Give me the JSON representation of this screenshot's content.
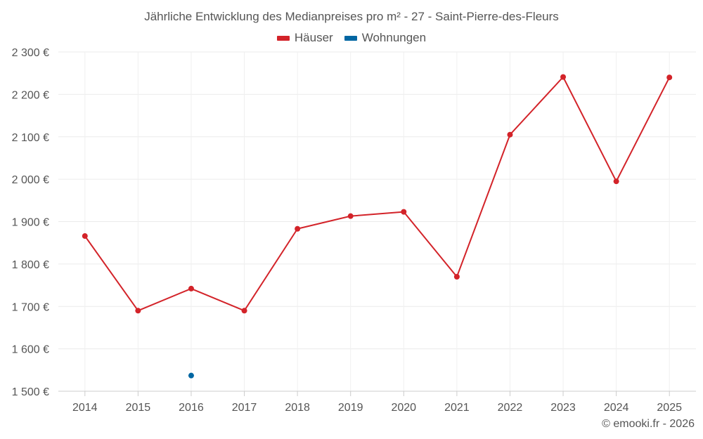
{
  "chart_data": {
    "type": "line",
    "title": "Jährliche Entwicklung des Medianpreises pro m² - 27 - Saint-Pierre-des-Fleurs",
    "xlabel": "",
    "ylabel": "",
    "categories": [
      "2014",
      "2015",
      "2016",
      "2017",
      "2018",
      "2019",
      "2020",
      "2021",
      "2022",
      "2023",
      "2024",
      "2025"
    ],
    "ylim": [
      1500,
      2300
    ],
    "yticks": [
      1500,
      1600,
      1700,
      1800,
      1900,
      2000,
      2100,
      2200,
      2300
    ],
    "ytick_labels": [
      "1 500 €",
      "1 600 €",
      "1 700 €",
      "1 800 €",
      "1 900 €",
      "2 000 €",
      "2 100 €",
      "2 200 €",
      "2 300 €"
    ],
    "grid": true,
    "legend_position": "top-center",
    "series": [
      {
        "name": "Häuser",
        "color": "#d32329",
        "values": [
          1866,
          1690,
          1742,
          1690,
          1883,
          1913,
          1923,
          1770,
          2105,
          2241,
          1995,
          2240
        ]
      },
      {
        "name": "Wohnungen",
        "color": "#0066a2",
        "values": [
          null,
          null,
          1537,
          null,
          null,
          null,
          null,
          null,
          null,
          null,
          null,
          null
        ]
      }
    ]
  },
  "credit": "© emooki.fr - 2026"
}
